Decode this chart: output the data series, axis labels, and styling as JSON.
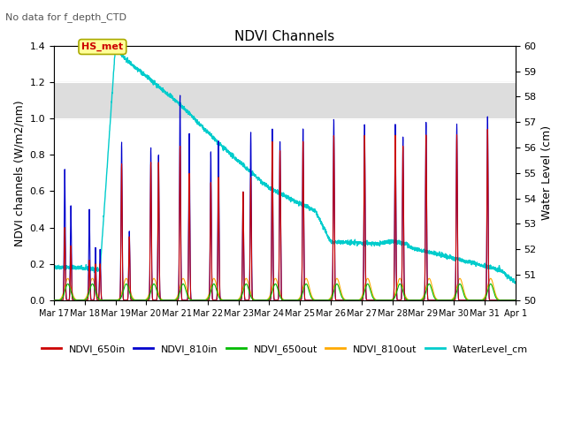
{
  "title": "NDVI Channels",
  "subtitle": "No data for f_depth_CTD",
  "ylabel_left": "NDVI channels (W/m2/nm)",
  "ylabel_right": "Water Level (cm)",
  "ylim_left": [
    0.0,
    1.4
  ],
  "ylim_right": [
    50.0,
    60.0
  ],
  "yticks_left": [
    0.0,
    0.2,
    0.4,
    0.6,
    0.8,
    1.0,
    1.2,
    1.4
  ],
  "yticks_right": [
    50.0,
    51.0,
    52.0,
    53.0,
    54.0,
    55.0,
    56.0,
    57.0,
    58.0,
    59.0,
    60.0
  ],
  "xtick_labels": [
    "Mar 17",
    "Mar 18",
    "Mar 19",
    "Mar 20",
    "Mar 21",
    "Mar 22",
    "Mar 23",
    "Mar 24",
    "Mar 25",
    "Mar 26",
    "Mar 27",
    "Mar 28",
    "Mar 29",
    "Mar 30",
    "Mar 31",
    "Apr 1"
  ],
  "annotation_text": "HS_met",
  "annotation_color": "#cc0000",
  "annotation_box_color": "#ffff99",
  "annotation_box_edge": "#aaaa00",
  "color_650in": "#cc0000",
  "color_810in": "#0000cc",
  "color_650out": "#00bb00",
  "color_810out": "#ffaa00",
  "color_water": "#00cccc",
  "legend_labels": [
    "NDVI_650in",
    "NDVI_810in",
    "NDVI_650out",
    "NDVI_810out",
    "WaterLevel_cm"
  ],
  "bg_band_low": 1.0,
  "bg_band_high": 1.2,
  "bg_color": "#dddddd",
  "figsize": [
    6.4,
    4.8
  ],
  "dpi": 100
}
